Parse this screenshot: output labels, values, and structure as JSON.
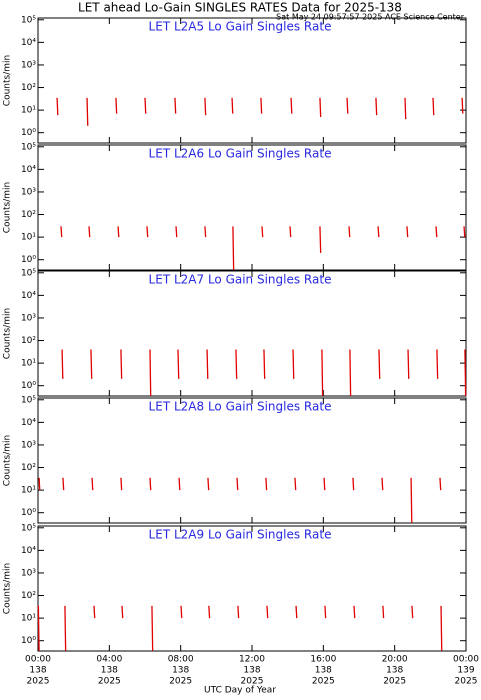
{
  "header": {
    "title": "LET ahead Lo-Gain SINGLES RATES Data for 2025-138",
    "subtitle": "Sat May 24 09:57:57 2025 ACE Science Center"
  },
  "x_axis": {
    "label": "UTC Day of Year",
    "xlim": [
      0,
      24
    ],
    "xticks": [
      {
        "value": 0,
        "label": "00:00"
      },
      {
        "value": 4,
        "label": "04:00"
      },
      {
        "value": 8,
        "label": "08:00"
      },
      {
        "value": 12,
        "label": "12:00"
      },
      {
        "value": 16,
        "label": "16:00"
      },
      {
        "value": 20,
        "label": "20:00"
      },
      {
        "value": 24,
        "label": "00:00"
      }
    ],
    "xtick_sublabels": [
      [
        "138",
        "2025"
      ],
      [
        "138",
        "2025"
      ],
      [
        "138",
        "2025"
      ],
      [
        "138",
        "2025"
      ],
      [
        "138",
        "2025"
      ],
      [
        "138",
        "2025"
      ],
      [
        "139",
        "2025"
      ]
    ]
  },
  "chart_data": [
    {
      "type": "line",
      "title": "LET L2A5 Lo Gain Singles Rate",
      "y_label": "Counts/min",
      "log_y": true,
      "ylim": [
        0.35,
        120000
      ],
      "yticks": [
        {
          "value": 1,
          "label": "10⁰"
        },
        {
          "value": 10,
          "label": "10¹"
        },
        {
          "value": 100,
          "label": "10²"
        },
        {
          "value": 1000,
          "label": "10³"
        },
        {
          "value": 10000,
          "label": "10⁴"
        },
        {
          "value": 100000,
          "label": "10⁵"
        }
      ],
      "series": [
        {
          "color": "#e00000",
          "x": [
            1.07,
            1.11,
            1.11,
            2.75,
            2.79,
            2.79,
            4.37,
            4.41,
            4.41,
            6.0,
            6.04,
            6.04,
            7.68,
            7.72,
            7.72,
            9.36,
            9.4,
            9.4,
            10.88,
            10.92,
            10.92,
            12.5,
            12.54,
            12.54,
            14.19,
            14.23,
            14.23,
            15.81,
            15.85,
            15.85,
            17.33,
            17.37,
            17.37,
            18.95,
            18.99,
            18.99,
            20.58,
            20.62,
            20.62,
            22.15,
            22.19,
            22.19,
            23.78,
            23.82,
            23.82
          ],
          "values": [
            35,
            6,
            null,
            35,
            2,
            null,
            35,
            7,
            null,
            35,
            7,
            null,
            35,
            7,
            null,
            35,
            6,
            null,
            35,
            7,
            null,
            35,
            7,
            null,
            35,
            7,
            null,
            35,
            5,
            null,
            35,
            7,
            null,
            35,
            6,
            null,
            35,
            4,
            null,
            35,
            6,
            null,
            35,
            7,
            null
          ]
        }
      ]
    },
    {
      "type": "line",
      "title": "LET L2A6 Lo Gain Singles Rate",
      "y_label": "Counts/min",
      "log_y": true,
      "ylim": [
        0.35,
        120000
      ],
      "yticks": [
        {
          "value": 1,
          "label": "10⁰"
        },
        {
          "value": 10,
          "label": "10¹"
        },
        {
          "value": 100,
          "label": "10²"
        },
        {
          "value": 1000,
          "label": "10³"
        },
        {
          "value": 10000,
          "label": "10⁴"
        },
        {
          "value": 100000,
          "label": "10⁵"
        }
      ],
      "series": [
        {
          "color": "#e00000",
          "x": [
            1.29,
            1.33,
            1.33,
            2.86,
            2.9,
            2.9,
            4.49,
            4.53,
            4.53,
            6.11,
            6.15,
            6.15,
            7.74,
            7.78,
            7.78,
            9.36,
            9.4,
            9.4,
            10.93,
            10.97,
            10.97,
            12.56,
            12.6,
            12.6,
            14.13,
            14.17,
            14.17,
            15.81,
            15.85,
            15.85,
            17.44,
            17.48,
            17.48,
            19.07,
            19.11,
            19.11,
            20.69,
            20.73,
            20.73,
            22.32,
            22.36,
            22.36,
            23.89,
            23.93,
            23.93
          ],
          "values": [
            30,
            10,
            null,
            30,
            10,
            null,
            30,
            10,
            null,
            30,
            10,
            null,
            30,
            10,
            null,
            30,
            10,
            null,
            30,
            0.35,
            null,
            30,
            10,
            null,
            30,
            10,
            null,
            30,
            2,
            null,
            30,
            10,
            null,
            30,
            10,
            null,
            30,
            10,
            null,
            30,
            10,
            null,
            30,
            10,
            null
          ]
        }
      ]
    },
    {
      "type": "line",
      "title": "LET L2A7 Lo Gain Singles Rate",
      "y_label": "Counts/min",
      "log_y": true,
      "ylim": [
        0.35,
        120000
      ],
      "yticks": [
        {
          "value": 1,
          "label": "10⁰"
        },
        {
          "value": 10,
          "label": "10¹"
        },
        {
          "value": 100,
          "label": "10²"
        },
        {
          "value": 1000,
          "label": "10³"
        },
        {
          "value": 10000,
          "label": "10⁴"
        },
        {
          "value": 100000,
          "label": "10⁵"
        }
      ],
      "series": [
        {
          "color": "#e00000",
          "x": [
            1.35,
            1.39,
            1.39,
            2.97,
            3.01,
            3.01,
            4.65,
            4.69,
            4.69,
            6.28,
            6.32,
            6.32,
            7.85,
            7.89,
            7.89,
            9.48,
            9.52,
            9.52,
            11.1,
            11.14,
            11.14,
            12.67,
            12.71,
            12.71,
            14.3,
            14.34,
            14.34,
            15.92,
            15.96,
            15.96,
            17.49,
            17.53,
            17.53,
            19.12,
            19.16,
            19.16,
            20.75,
            20.79,
            20.79,
            22.37,
            22.41,
            22.41,
            23.94,
            23.98,
            23.98
          ],
          "values": [
            40,
            2,
            null,
            40,
            2,
            null,
            40,
            2,
            null,
            40,
            0.35,
            null,
            40,
            2,
            null,
            40,
            2,
            null,
            40,
            2,
            null,
            40,
            2,
            null,
            40,
            2,
            null,
            40,
            0.35,
            null,
            40,
            0.35,
            null,
            40,
            2,
            null,
            40,
            2,
            null,
            40,
            2,
            null,
            40,
            0.35,
            null
          ]
        }
      ]
    },
    {
      "type": "line",
      "title": "LET L2A8 Lo Gain Singles Rate",
      "y_label": "Counts/min",
      "log_y": true,
      "ylim": [
        0.35,
        120000
      ],
      "yticks": [
        {
          "value": 1,
          "label": "10⁰"
        },
        {
          "value": 10,
          "label": "10¹"
        },
        {
          "value": 100,
          "label": "10²"
        },
        {
          "value": 1000,
          "label": "10³"
        },
        {
          "value": 10000,
          "label": "10⁴"
        },
        {
          "value": 100000,
          "label": "10⁵"
        }
      ],
      "series": [
        {
          "color": "#e00000",
          "x": [
            0.06,
            0.1,
            0.1,
            1.4,
            1.44,
            1.44,
            3.03,
            3.07,
            3.07,
            4.65,
            4.69,
            4.69,
            6.28,
            6.32,
            6.32,
            7.91,
            7.95,
            7.95,
            9.53,
            9.57,
            9.57,
            11.16,
            11.2,
            11.2,
            12.78,
            12.82,
            12.82,
            14.41,
            14.45,
            14.45,
            16.04,
            16.08,
            16.08,
            17.66,
            17.7,
            17.7,
            19.29,
            19.33,
            19.33,
            20.92,
            20.96,
            20.96,
            22.54,
            22.58,
            22.58
          ],
          "values": [
            35,
            10,
            null,
            35,
            10,
            null,
            35,
            10,
            null,
            35,
            10,
            null,
            35,
            10,
            null,
            35,
            10,
            null,
            35,
            10,
            null,
            35,
            10,
            null,
            35,
            10,
            null,
            35,
            10,
            null,
            35,
            10,
            null,
            35,
            10,
            null,
            35,
            10,
            null,
            35,
            0.35,
            null,
            35,
            10,
            null
          ]
        }
      ]
    },
    {
      "type": "line",
      "title": "LET L2A9 Lo Gain Singles Rate",
      "y_label": "Counts/min",
      "log_y": true,
      "ylim": [
        0.35,
        120000
      ],
      "yticks": [
        {
          "value": 1,
          "label": "10⁰"
        },
        {
          "value": 10,
          "label": "10¹"
        },
        {
          "value": 100,
          "label": "10²"
        },
        {
          "value": 1000,
          "label": "10³"
        },
        {
          "value": 10000,
          "label": "10⁴"
        },
        {
          "value": 100000,
          "label": "10⁵"
        }
      ],
      "series": [
        {
          "color": "#e00000",
          "x": [
            0.02,
            0.06,
            0.06,
            1.51,
            1.55,
            1.55,
            3.14,
            3.18,
            3.18,
            4.71,
            4.75,
            4.75,
            6.39,
            6.43,
            6.43,
            8.02,
            8.06,
            8.06,
            9.58,
            9.62,
            9.62,
            11.21,
            11.25,
            11.25,
            12.84,
            12.88,
            12.88,
            14.47,
            14.51,
            14.51,
            16.09,
            16.13,
            16.13,
            17.72,
            17.76,
            17.76,
            19.34,
            19.38,
            19.38,
            20.97,
            21.01,
            21.01,
            22.6,
            22.64,
            22.64
          ],
          "values": [
            35,
            0.35,
            null,
            35,
            0.35,
            null,
            35,
            10,
            null,
            35,
            10,
            null,
            35,
            0.35,
            null,
            35,
            10,
            null,
            35,
            10,
            null,
            35,
            10,
            null,
            35,
            10,
            null,
            35,
            10,
            null,
            35,
            10,
            null,
            35,
            10,
            null,
            35,
            10,
            null,
            35,
            10,
            null,
            35,
            0.35,
            null
          ]
        }
      ]
    }
  ]
}
